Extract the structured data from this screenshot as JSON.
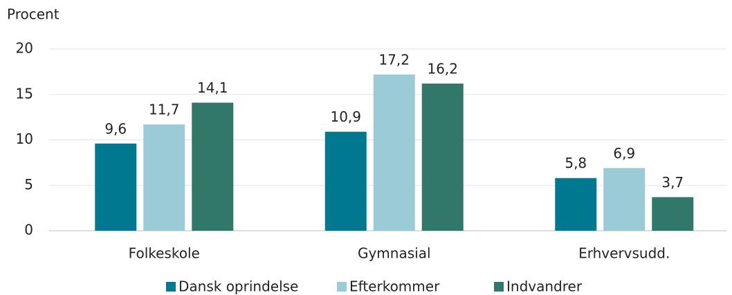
{
  "chart_data": {
    "type": "bar",
    "y_axis_label": "Procent",
    "categories": [
      "Folkeskole",
      "Gymnasial",
      "Erhvervsudd."
    ],
    "series": [
      {
        "name": "Dansk oprindelse",
        "color": "#00788f",
        "values": [
          9.6,
          10.9,
          5.8
        ],
        "value_labels": [
          "9,6",
          "10,9",
          "5,8"
        ]
      },
      {
        "name": "Efterkommer",
        "color": "#9ccbd8",
        "values": [
          11.7,
          17.2,
          6.9
        ],
        "value_labels": [
          "11,7",
          "17,2",
          "6,9"
        ]
      },
      {
        "name": "Indvandrer",
        "color": "#31786b",
        "values": [
          14.1,
          16.2,
          3.7
        ],
        "value_labels": [
          "14,1",
          "16,2",
          "3,7"
        ]
      }
    ],
    "ylim": [
      0,
      20
    ],
    "yticks": [
      0,
      5,
      10,
      15,
      20
    ],
    "grid": true,
    "legend": "bottom"
  }
}
